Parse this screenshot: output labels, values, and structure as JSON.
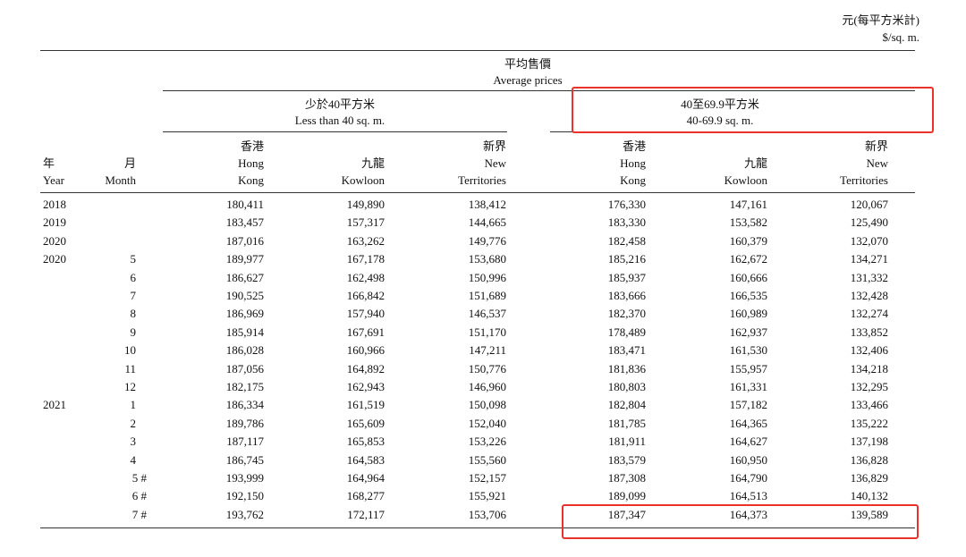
{
  "unit": {
    "zh": "元(每平方米計)",
    "en": "$/sq. m."
  },
  "title": {
    "zh": "平均售價",
    "en": "Average prices"
  },
  "groups": [
    {
      "zh": "少於40平方米",
      "en": "Less than 40 sq. m."
    },
    {
      "zh": "40至69.9平方米",
      "en": "40-69.9 sq. m."
    }
  ],
  "headers": {
    "year": {
      "zh": "年",
      "en": "Year"
    },
    "month": {
      "zh": "月",
      "en": "Month"
    },
    "hk": {
      "zh": "香港",
      "en1": "Hong",
      "en2": "Kong"
    },
    "kln": {
      "zh": "九龍",
      "en": "Kowloon"
    },
    "nt": {
      "zh": "新界",
      "en1": "New",
      "en2": "Territories"
    }
  },
  "highlight_color": "#e8322b",
  "rows": [
    {
      "year": "2018",
      "month": "",
      "v": [
        "180,411",
        "149,890",
        "138,412",
        "176,330",
        "147,161",
        "120,067"
      ]
    },
    {
      "year": "2019",
      "month": "",
      "v": [
        "183,457",
        "157,317",
        "144,665",
        "183,330",
        "153,582",
        "125,490"
      ]
    },
    {
      "year": "2020",
      "month": "",
      "v": [
        "187,016",
        "163,262",
        "149,776",
        "182,458",
        "160,379",
        "132,070"
      ]
    },
    {
      "year": "2020",
      "month": "5",
      "v": [
        "189,977",
        "167,178",
        "153,680",
        "185,216",
        "162,672",
        "134,271"
      ]
    },
    {
      "year": "",
      "month": "6",
      "v": [
        "186,627",
        "162,498",
        "150,996",
        "185,937",
        "160,666",
        "131,332"
      ]
    },
    {
      "year": "",
      "month": "7",
      "v": [
        "190,525",
        "166,842",
        "151,689",
        "183,666",
        "166,535",
        "132,428"
      ]
    },
    {
      "year": "",
      "month": "8",
      "v": [
        "186,969",
        "157,940",
        "146,537",
        "182,370",
        "160,989",
        "132,274"
      ]
    },
    {
      "year": "",
      "month": "9",
      "v": [
        "185,914",
        "167,691",
        "151,170",
        "178,489",
        "162,937",
        "133,852"
      ]
    },
    {
      "year": "",
      "month": "10",
      "v": [
        "186,028",
        "160,966",
        "147,211",
        "183,471",
        "161,530",
        "132,406"
      ]
    },
    {
      "year": "",
      "month": "11",
      "v": [
        "187,056",
        "164,892",
        "150,776",
        "181,836",
        "155,957",
        "134,218"
      ]
    },
    {
      "year": "",
      "month": "12",
      "v": [
        "182,175",
        "162,943",
        "146,960",
        "180,803",
        "161,331",
        "132,295"
      ]
    },
    {
      "year": "2021",
      "month": "1",
      "v": [
        "186,334",
        "161,519",
        "150,098",
        "182,804",
        "157,182",
        "133,466"
      ]
    },
    {
      "year": "",
      "month": "2",
      "v": [
        "189,786",
        "165,609",
        "152,040",
        "181,785",
        "164,365",
        "135,222"
      ]
    },
    {
      "year": "",
      "month": "3",
      "v": [
        "187,117",
        "165,853",
        "153,226",
        "181,911",
        "164,627",
        "137,198"
      ]
    },
    {
      "year": "",
      "month": "4",
      "v": [
        "186,745",
        "164,583",
        "155,560",
        "183,579",
        "160,950",
        "136,828"
      ]
    },
    {
      "year": "",
      "month": "5 #",
      "v": [
        "193,999",
        "164,964",
        "152,157",
        "187,308",
        "164,790",
        "136,829"
      ]
    },
    {
      "year": "",
      "month": "6 #",
      "v": [
        "192,150",
        "168,277",
        "155,921",
        "189,099",
        "164,513",
        "140,132"
      ]
    },
    {
      "year": "",
      "month": "7 #",
      "v": [
        "193,762",
        "172,117",
        "153,706",
        "187,347",
        "164,373",
        "139,589"
      ]
    }
  ]
}
